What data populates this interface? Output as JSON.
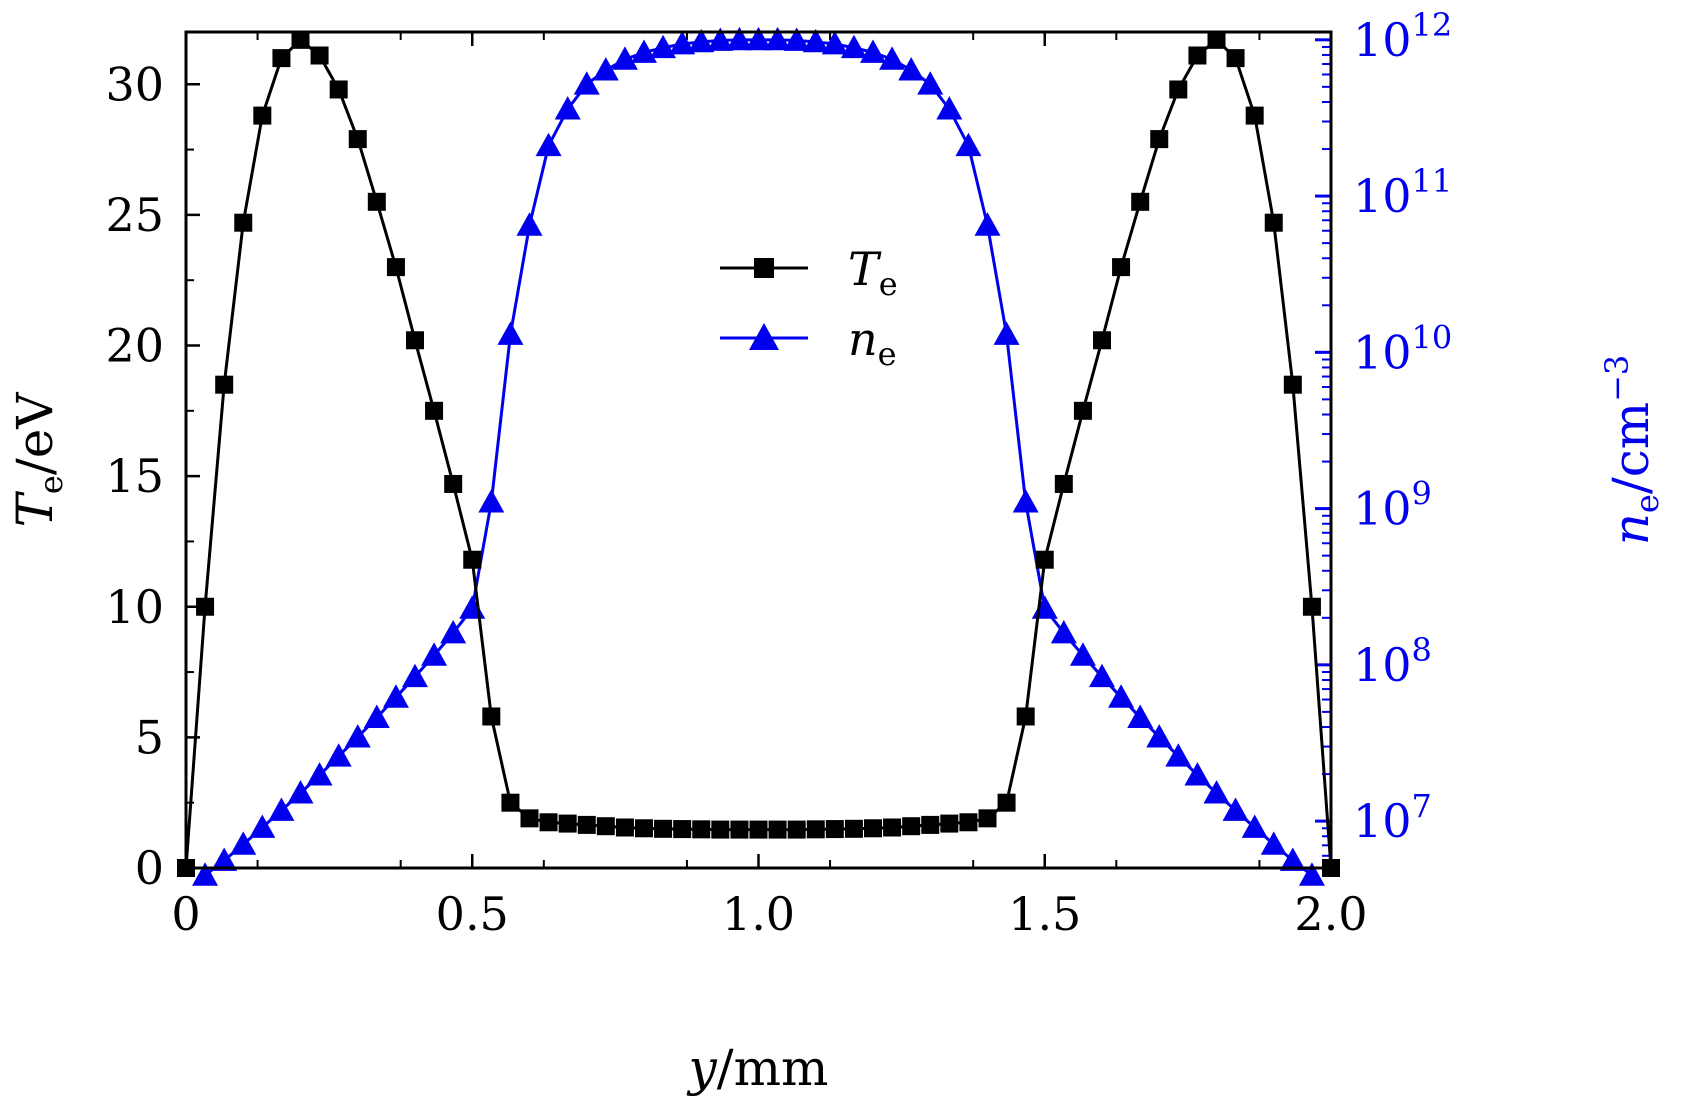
{
  "chart_data": {
    "type": "line",
    "x_label": {
      "main": "y",
      "unit": "/mm"
    },
    "y_left_label": {
      "main": "T",
      "sub": "e",
      "unit": "/eV"
    },
    "y_right_label": {
      "main": "n",
      "sub": "e",
      "unit": "/cm",
      "sup": "−3"
    },
    "x_range": [
      0,
      2.0
    ],
    "y_left_range": [
      0,
      32
    ],
    "y_right_range_log10": [
      6.7,
      12.05
    ],
    "y_right_scale": "log",
    "x_ticks": [
      "0",
      "0.5",
      "1.0",
      "1.5",
      "2.0"
    ],
    "y_left_ticks": [
      "0",
      "5",
      "10",
      "15",
      "20",
      "25",
      "30"
    ],
    "y_right_ticks": [
      {
        "base": "10",
        "exp": "7"
      },
      {
        "base": "10",
        "exp": "8"
      },
      {
        "base": "10",
        "exp": "9"
      },
      {
        "base": "10",
        "exp": "10"
      },
      {
        "base": "10",
        "exp": "11"
      },
      {
        "base": "10",
        "exp": "12"
      }
    ],
    "legend_position": "upper-center",
    "series": [
      {
        "name": "T_e",
        "legend": {
          "main": "T",
          "sub": "e"
        },
        "axis": "left",
        "color": "#000000",
        "marker": "square",
        "x": [
          0.0,
          0.0333,
          0.0667,
          0.1,
          0.1333,
          0.1667,
          0.2,
          0.2333,
          0.2667,
          0.3,
          0.3333,
          0.3667,
          0.4,
          0.4333,
          0.4667,
          0.5,
          0.5333,
          0.5667,
          0.6,
          0.6333,
          0.6667,
          0.7,
          0.7333,
          0.7667,
          0.8,
          0.8333,
          0.8667,
          0.9,
          0.9333,
          0.9667,
          1.0,
          1.0333,
          1.0667,
          1.1,
          1.1333,
          1.1667,
          1.2,
          1.2333,
          1.2667,
          1.3,
          1.3333,
          1.3667,
          1.4,
          1.4333,
          1.4667,
          1.5,
          1.5333,
          1.5667,
          1.6,
          1.6333,
          1.6667,
          1.7,
          1.7333,
          1.7667,
          1.8,
          1.8333,
          1.8667,
          1.9,
          1.9333,
          1.9667,
          2.0
        ],
        "y": [
          0.0,
          10.0,
          18.5,
          24.7,
          28.8,
          31.0,
          31.7,
          31.1,
          29.8,
          27.9,
          25.5,
          23.0,
          20.2,
          17.5,
          14.7,
          11.8,
          5.8,
          2.5,
          1.9,
          1.75,
          1.7,
          1.65,
          1.6,
          1.55,
          1.52,
          1.5,
          1.49,
          1.48,
          1.47,
          1.47,
          1.47,
          1.47,
          1.47,
          1.48,
          1.49,
          1.5,
          1.52,
          1.55,
          1.6,
          1.65,
          1.7,
          1.75,
          1.9,
          2.5,
          5.8,
          11.8,
          14.7,
          17.5,
          20.2,
          23.0,
          25.5,
          27.9,
          29.8,
          31.1,
          31.7,
          31.0,
          28.8,
          24.7,
          18.5,
          10.0,
          0.0
        ]
      },
      {
        "name": "n_e",
        "legend": {
          "main": "n",
          "sub": "e"
        },
        "axis": "right",
        "color": "#0000ee",
        "marker": "triangle",
        "x": [
          0.0333,
          0.0667,
          0.1,
          0.1333,
          0.1667,
          0.2,
          0.2333,
          0.2667,
          0.3,
          0.3333,
          0.3667,
          0.4,
          0.4333,
          0.4667,
          0.5,
          0.5333,
          0.5667,
          0.6,
          0.6333,
          0.6667,
          0.7,
          0.7333,
          0.7667,
          0.8,
          0.8333,
          0.8667,
          0.9,
          0.9333,
          0.9667,
          1.0,
          1.0333,
          1.0667,
          1.1,
          1.1333,
          1.1667,
          1.2,
          1.2333,
          1.2667,
          1.3,
          1.3333,
          1.3667,
          1.4,
          1.4333,
          1.4667,
          1.5,
          1.5333,
          1.5667,
          1.6,
          1.6333,
          1.6667,
          1.7,
          1.7333,
          1.7667,
          1.8,
          1.8333,
          1.8667,
          1.9,
          1.9333,
          1.9667
        ],
        "y": [
          4500000.0,
          5600000.0,
          7100000.0,
          9100000.0,
          11700000.0,
          15100000.0,
          19700000.0,
          26000000.0,
          34500000.0,
          46000000.0,
          62000000.0,
          84000000.0,
          115000000.0,
          160000000.0,
          230000000.0,
          1100000000.0,
          13000000000.0,
          65000000000.0,
          210000000000.0,
          360000000000.0,
          520000000000.0,
          640000000000.0,
          750000000000.0,
          830000000000.0,
          890000000000.0,
          940000000000.0,
          970000000000.0,
          990000000000.0,
          1000000000000.0,
          1000000000000.0,
          1000000000000.0,
          990000000000.0,
          970000000000.0,
          940000000000.0,
          890000000000.0,
          830000000000.0,
          750000000000.0,
          640000000000.0,
          520000000000.0,
          360000000000.0,
          210000000000.0,
          65000000000.0,
          13000000000.0,
          1100000000.0,
          230000000.0,
          160000000.0,
          115000000.0,
          84000000.0,
          62000000.0,
          46000000.0,
          34500000.0,
          26000000.0,
          19700000.0,
          15100000.0,
          11700000.0,
          9100000.0,
          7100000.0,
          5600000.0,
          4500000.0
        ]
      }
    ]
  }
}
